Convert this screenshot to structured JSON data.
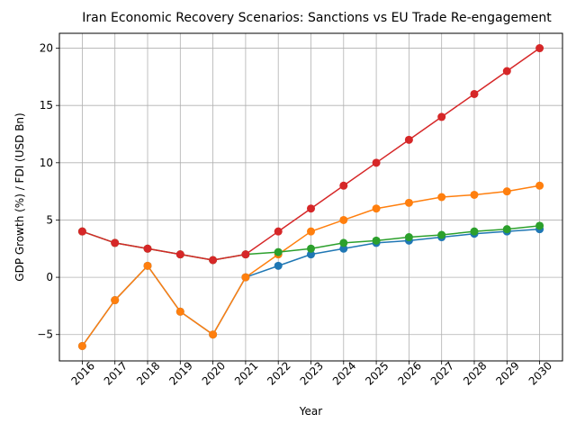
{
  "chart_data": {
    "type": "line",
    "title": "Iran Economic Recovery Scenarios: Sanctions vs EU Trade Re-engagement",
    "xlabel": "Year",
    "ylabel": "GDP Growth (%) / FDI (USD Bn)",
    "x": [
      2016,
      2017,
      2018,
      2019,
      2020,
      2021,
      2022,
      2023,
      2024,
      2025,
      2026,
      2027,
      2028,
      2029,
      2030
    ],
    "xticks": [
      "2016",
      "2017",
      "2018",
      "2019",
      "2020",
      "2021",
      "2022",
      "2023",
      "2024",
      "2025",
      "2026",
      "2027",
      "2028",
      "2029",
      "2030"
    ],
    "yticks": [
      "−5",
      "0",
      "5",
      "10",
      "15",
      "20"
    ],
    "ytick_values": [
      -5,
      0,
      5,
      10,
      15,
      20
    ],
    "ylim": [
      -7.3,
      21.3
    ],
    "grid": true,
    "series": [
      {
        "color": "#1f77b4",
        "values": [
          -6,
          -2,
          1,
          -3,
          -5,
          0,
          1,
          2,
          2.5,
          3,
          3.2,
          3.5,
          3.8,
          4,
          4.2
        ]
      },
      {
        "color": "#ff7f0e",
        "values": [
          -6,
          -2,
          1,
          -3,
          -5,
          0,
          2,
          4,
          5,
          6,
          6.5,
          7,
          7.2,
          7.5,
          8
        ]
      },
      {
        "color": "#2ca02c",
        "values": [
          4,
          3,
          2.5,
          2,
          1.5,
          2,
          2.2,
          2.5,
          3,
          3.2,
          3.5,
          3.7,
          4,
          4.2,
          4.5
        ]
      },
      {
        "color": "#d62728",
        "values": [
          4,
          3,
          2.5,
          2,
          1.5,
          2,
          4,
          6,
          8,
          10,
          12,
          14,
          16,
          18,
          20
        ]
      }
    ]
  }
}
